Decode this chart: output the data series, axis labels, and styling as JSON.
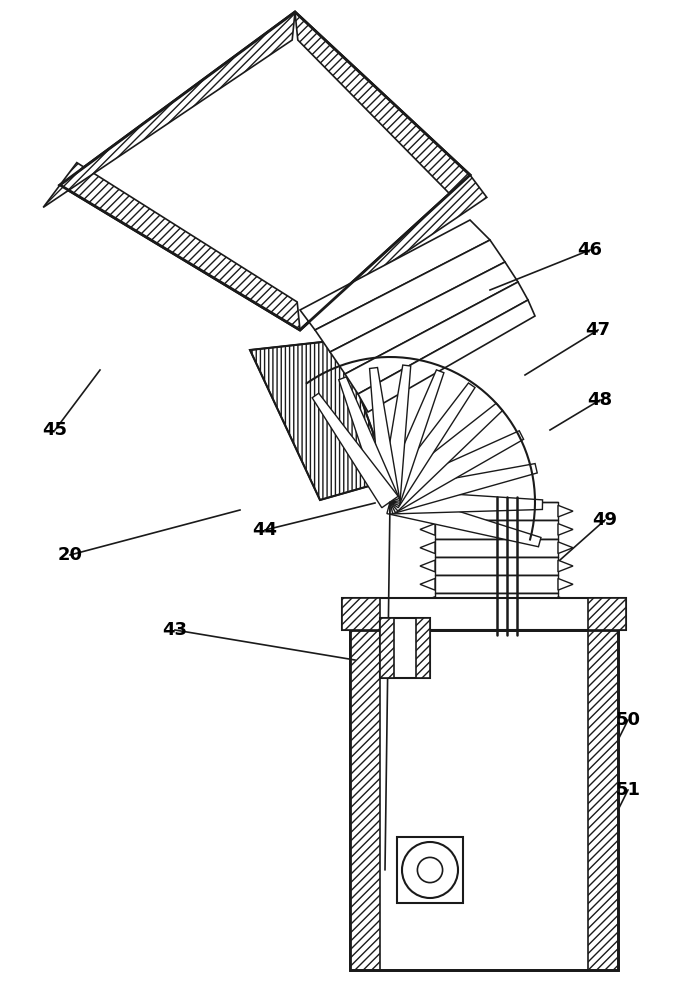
{
  "bg_color": "#ffffff",
  "line_color": "#1a1a1a",
  "label_fontsize": 13,
  "line_width": 1.5
}
